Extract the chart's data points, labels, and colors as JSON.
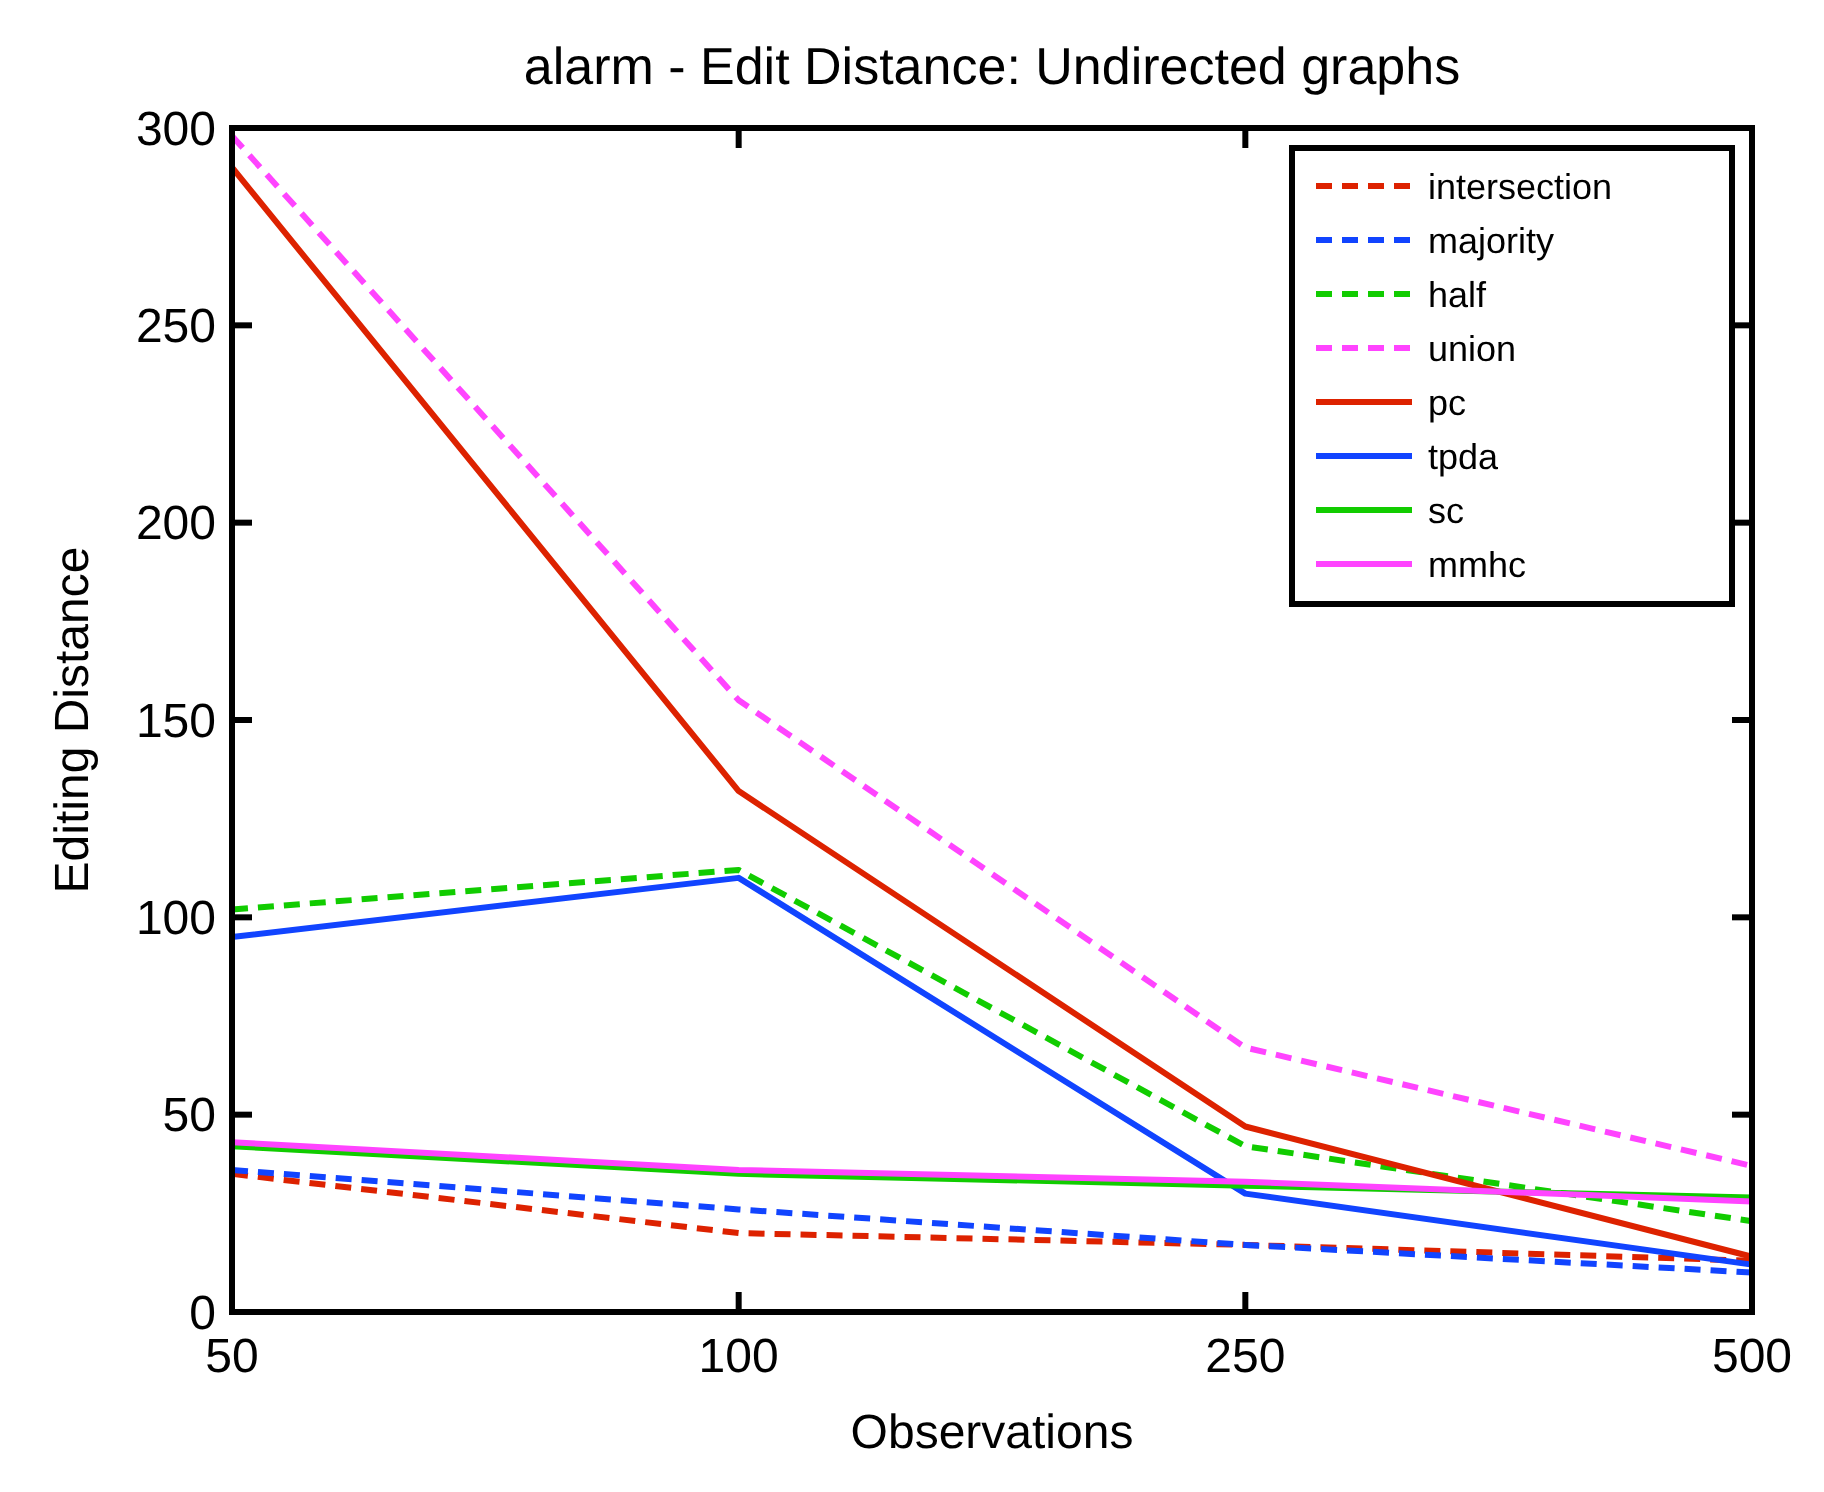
{
  "chart_data": {
    "type": "line",
    "title": "alarm - Edit Distance: Undirected graphs",
    "xlabel": "Observations",
    "ylabel": "Editing Distance",
    "categories": [
      "50",
      "100",
      "250",
      "500"
    ],
    "ylim": [
      0,
      300
    ],
    "yticks": [
      0,
      50,
      100,
      150,
      200,
      250,
      300
    ],
    "grid": false,
    "legend": "top right",
    "series": [
      {
        "name": "intersection",
        "color": "#dd2200",
        "line_style": "dashed",
        "values": [
          35,
          20,
          17,
          13
        ]
      },
      {
        "name": "majority",
        "color": "#1144ff",
        "line_style": "dashed",
        "values": [
          36,
          26,
          17,
          10
        ]
      },
      {
        "name": "half",
        "color": "#11cc00",
        "line_style": "dashed",
        "values": [
          102,
          112,
          42,
          23
        ]
      },
      {
        "name": "union",
        "color": "#ff44ff",
        "line_style": "dashed",
        "values": [
          298,
          155,
          67,
          37
        ]
      },
      {
        "name": "pc",
        "color": "#dd2200",
        "line_style": "solid",
        "values": [
          290,
          132,
          47,
          14
        ]
      },
      {
        "name": "tpda",
        "color": "#1144ff",
        "line_style": "solid",
        "values": [
          95,
          110,
          30,
          12
        ]
      },
      {
        "name": "sc",
        "color": "#11cc00",
        "line_style": "solid",
        "values": [
          42,
          35,
          32,
          29
        ]
      },
      {
        "name": "mmhc",
        "color": "#ff44ff",
        "line_style": "solid",
        "values": [
          43,
          36,
          33,
          28
        ]
      }
    ]
  }
}
